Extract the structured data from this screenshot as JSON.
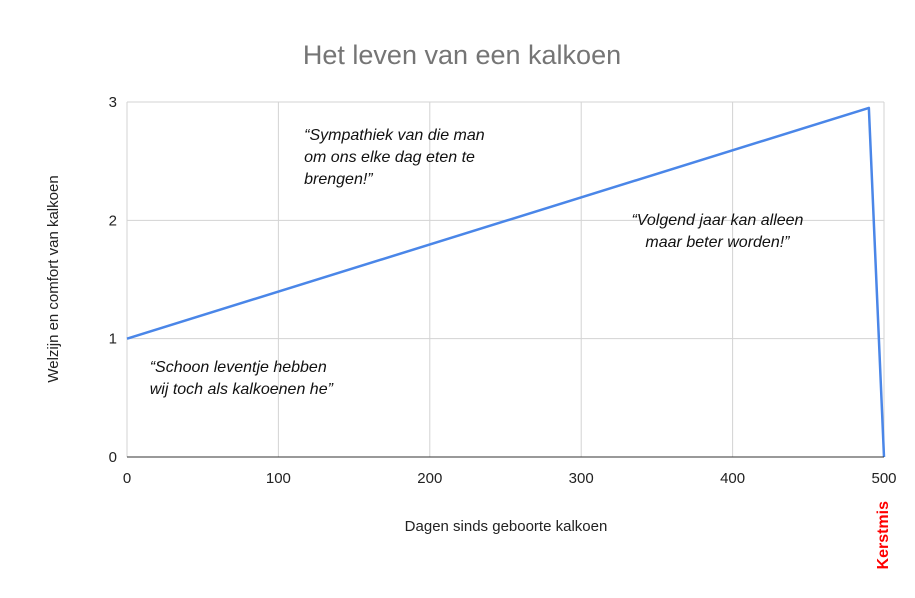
{
  "chart_data": {
    "type": "line",
    "title": "Het leven van een kalkoen",
    "xlabel": "Dagen sinds geboorte kalkoen",
    "ylabel": "Welzijn en comfort van kalkoen",
    "xlim": [
      0,
      500
    ],
    "ylim": [
      0,
      3
    ],
    "x_ticks": [
      0,
      100,
      200,
      300,
      400,
      500
    ],
    "y_ticks": [
      0,
      1,
      2,
      3
    ],
    "grid": true,
    "series": [
      {
        "color": "#4a86e8",
        "x": [
          0,
          490,
          500
        ],
        "y": [
          1,
          2.95,
          0
        ]
      }
    ],
    "annotations": [
      {
        "id": "annotation-1",
        "lines": [
          "“Schoon leventje hebben",
          "wij toch als kalkoenen he”"
        ],
        "x": 15,
        "y": 0.72,
        "align": "start"
      },
      {
        "id": "annotation-2",
        "lines": [
          "“Sympathiek van die man",
          "om ons elke dag eten te",
          "brengen!”"
        ],
        "x": 117,
        "y": 2.68,
        "align": "start"
      },
      {
        "id": "annotation-3",
        "lines": [
          "“Volgend jaar kan alleen",
          "maar beter worden!”"
        ],
        "x": 390,
        "y": 1.96,
        "align": "middle"
      }
    ],
    "x_marker": {
      "label": "Kerstmis",
      "x": 500,
      "color": "#ff0000"
    }
  }
}
